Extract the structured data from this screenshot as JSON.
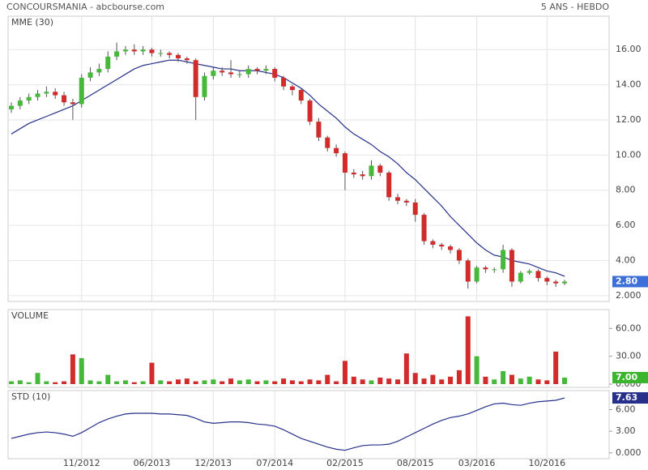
{
  "header": {
    "title": "CONCOURSMANIA - abcbourse.com",
    "period": "5 ANS - HEBDO"
  },
  "chart_data": [
    {
      "type": "candlestick",
      "name": "MME (30)",
      "up_color": "#46b83a",
      "down_color": "#d12b2b",
      "line_color": "#26308a",
      "label_color": "#3d6fd8",
      "open": [
        12.6,
        12.8,
        13.1,
        13.3,
        13.5,
        13.6,
        13.4,
        13.0,
        12.9,
        14.4,
        14.7,
        14.9,
        15.6,
        15.9,
        16.0,
        15.9,
        16.0,
        15.8,
        15.8,
        15.7,
        15.5,
        15.4,
        13.3,
        14.5,
        14.8,
        14.7,
        14.6,
        14.6,
        14.9,
        14.8,
        14.9,
        14.4,
        13.9,
        13.7,
        13.1,
        11.9,
        11.0,
        10.4,
        10.1,
        9.0,
        8.9,
        8.8,
        9.4,
        9.0,
        7.6,
        7.4,
        7.3,
        6.6,
        5.1,
        4.9,
        4.8,
        4.6,
        4.0,
        2.8,
        3.6,
        3.5,
        3.5,
        4.6,
        2.8,
        3.3,
        3.4,
        3.0,
        2.8,
        2.7
      ],
      "high": [
        13.0,
        13.3,
        13.5,
        13.7,
        13.9,
        13.8,
        13.6,
        13.2,
        14.6,
        15.0,
        15.2,
        15.9,
        16.4,
        16.2,
        16.3,
        16.2,
        16.1,
        16.0,
        15.9,
        15.8,
        15.6,
        15.5,
        14.7,
        15.0,
        15.0,
        15.4,
        14.8,
        15.1,
        15.0,
        15.1,
        15.0,
        14.5,
        14.0,
        13.8,
        13.2,
        12.1,
        11.1,
        10.6,
        10.2,
        9.2,
        9.1,
        9.7,
        9.5,
        9.1,
        7.8,
        7.5,
        7.5,
        6.7,
        5.2,
        5.0,
        4.9,
        4.7,
        4.1,
        3.7,
        3.7,
        3.6,
        4.9,
        4.7,
        3.4,
        3.5,
        3.5,
        3.1,
        2.9,
        2.9
      ],
      "low": [
        12.4,
        12.6,
        12.9,
        13.1,
        13.3,
        13.2,
        12.8,
        12.0,
        12.7,
        14.2,
        14.5,
        14.7,
        15.4,
        15.7,
        15.7,
        15.7,
        15.6,
        15.6,
        15.5,
        15.3,
        15.2,
        12.0,
        13.1,
        14.3,
        14.5,
        14.4,
        14.4,
        14.4,
        14.6,
        14.6,
        14.2,
        13.7,
        13.4,
        12.9,
        11.7,
        10.8,
        10.2,
        9.9,
        8.0,
        8.7,
        8.6,
        8.6,
        8.8,
        7.4,
        7.2,
        7.1,
        6.2,
        4.9,
        4.7,
        4.6,
        4.4,
        3.8,
        2.4,
        2.7,
        3.3,
        3.3,
        3.3,
        2.5,
        2.7,
        3.2,
        2.8,
        2.6,
        2.5,
        2.6
      ],
      "close": [
        12.8,
        13.1,
        13.3,
        13.5,
        13.6,
        13.4,
        13.0,
        12.9,
        14.4,
        14.7,
        14.9,
        15.6,
        15.9,
        16.0,
        15.9,
        16.0,
        15.8,
        15.8,
        15.7,
        15.5,
        15.4,
        13.3,
        14.5,
        14.8,
        14.7,
        14.6,
        14.6,
        14.9,
        14.8,
        14.9,
        14.4,
        13.9,
        13.7,
        13.1,
        11.9,
        11.0,
        10.4,
        10.1,
        9.0,
        8.9,
        8.8,
        9.4,
        9.0,
        7.6,
        7.4,
        7.3,
        6.6,
        5.1,
        4.9,
        4.8,
        4.6,
        4.0,
        2.8,
        3.6,
        3.5,
        3.5,
        4.6,
        2.8,
        3.3,
        3.4,
        3.0,
        2.8,
        2.7,
        2.8
      ],
      "line_values": [
        11.2,
        11.5,
        11.8,
        12.0,
        12.2,
        12.4,
        12.6,
        12.8,
        13.1,
        13.4,
        13.7,
        14.0,
        14.3,
        14.6,
        14.9,
        15.1,
        15.2,
        15.3,
        15.4,
        15.4,
        15.3,
        15.2,
        15.1,
        15.0,
        14.9,
        14.9,
        14.8,
        14.8,
        14.8,
        14.7,
        14.6,
        14.4,
        14.1,
        13.8,
        13.4,
        12.9,
        12.5,
        12.1,
        11.6,
        11.2,
        10.9,
        10.6,
        10.2,
        9.9,
        9.5,
        9.0,
        8.6,
        8.1,
        7.6,
        7.1,
        6.5,
        6.0,
        5.5,
        5.0,
        4.6,
        4.3,
        4.2,
        4.0,
        3.9,
        3.8,
        3.6,
        3.4,
        3.3,
        3.1
      ],
      "value_label": "2.80",
      "ylim": [
        1.67,
        17.9
      ],
      "yticks": [
        {
          "value": 2,
          "label": "2.000"
        },
        {
          "value": 4,
          "label": "4.00"
        },
        {
          "value": 6,
          "label": "6.00"
        },
        {
          "value": 8,
          "label": "8.00"
        },
        {
          "value": 10,
          "label": "10.00"
        },
        {
          "value": 12,
          "label": "12.00"
        },
        {
          "value": 14,
          "label": "14.00"
        },
        {
          "value": 16,
          "label": "16.00"
        }
      ],
      "grid": true
    },
    {
      "type": "bar",
      "name": "VOLUME",
      "label_color": "#3bb42e",
      "values": [
        3,
        4,
        2,
        12,
        3,
        2,
        3,
        32,
        28,
        4,
        3,
        10,
        3,
        4,
        2,
        3,
        23,
        4,
        3,
        5,
        6,
        3,
        4,
        5,
        3,
        6,
        4,
        5,
        3,
        4,
        3,
        6,
        4,
        3,
        5,
        4,
        10,
        3,
        25,
        8,
        5,
        4,
        7,
        6,
        5,
        33,
        12,
        6,
        10,
        5,
        8,
        15,
        73,
        30,
        8,
        5,
        14,
        10,
        6,
        8,
        5,
        4,
        35,
        7
      ],
      "value_label": "7.00",
      "ylim": [
        -3.5,
        80.3
      ],
      "yticks": [
        {
          "value": 0,
          "label": "0.000"
        },
        {
          "value": 30,
          "label": "30.00"
        },
        {
          "value": 60,
          "label": "60.00"
        }
      ],
      "grid": false
    },
    {
      "type": "line",
      "name": "STD (10)",
      "color": "#26308a",
      "label_color": "#26308a",
      "values": [
        2.0,
        2.3,
        2.6,
        2.8,
        2.9,
        2.8,
        2.6,
        2.3,
        2.8,
        3.5,
        4.2,
        4.7,
        5.1,
        5.4,
        5.5,
        5.5,
        5.5,
        5.4,
        5.4,
        5.3,
        5.2,
        4.8,
        4.3,
        4.1,
        4.2,
        4.3,
        4.3,
        4.2,
        4.0,
        3.9,
        3.7,
        3.2,
        2.6,
        2.0,
        1.6,
        1.2,
        0.8,
        0.5,
        0.35,
        0.7,
        1.0,
        1.1,
        1.1,
        1.2,
        1.6,
        2.2,
        2.8,
        3.4,
        4.0,
        4.5,
        4.9,
        5.1,
        5.4,
        5.9,
        6.4,
        6.8,
        6.9,
        6.7,
        6.6,
        6.9,
        7.1,
        7.2,
        7.3,
        7.63
      ],
      "value_label": "7.63",
      "categories": [
        null,
        null,
        null,
        null,
        null,
        null,
        null,
        null,
        "11/2012",
        null,
        null,
        null,
        null,
        null,
        null,
        null,
        "06/2013",
        null,
        null,
        null,
        null,
        null,
        null,
        "12/2013",
        null,
        null,
        null,
        null,
        null,
        null,
        "07/2014",
        null,
        null,
        null,
        null,
        null,
        null,
        null,
        "02/2015",
        null,
        null,
        null,
        null,
        null,
        null,
        null,
        "08/2015",
        null,
        null,
        null,
        null,
        null,
        null,
        "03/2016",
        null,
        null,
        null,
        null,
        null,
        null,
        null,
        "10/2016",
        null,
        null
      ],
      "ylim": [
        -0.81,
        8.65
      ],
      "yticks": [
        {
          "value": 0,
          "label": "0.000"
        },
        {
          "value": 3,
          "label": "3.00"
        },
        {
          "value": 6,
          "label": "6.00"
        }
      ],
      "grid": false
    }
  ]
}
